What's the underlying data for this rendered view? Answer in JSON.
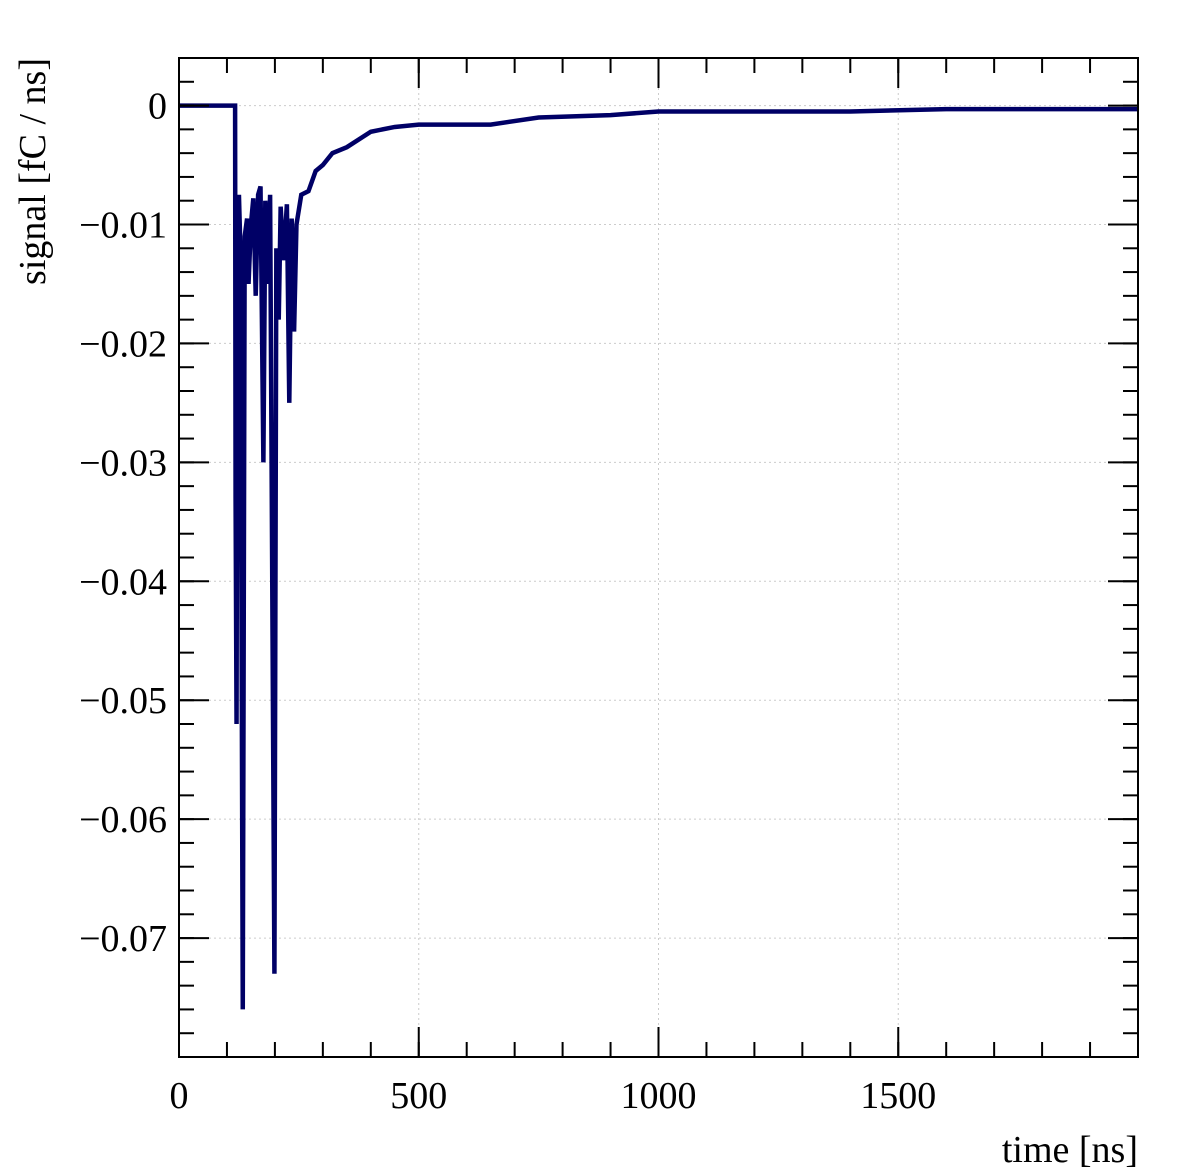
{
  "chart_data": {
    "type": "line",
    "xlabel": "time [ns]",
    "ylabel": "signal [fC / ns]",
    "color": "#000066",
    "grid": true,
    "xlim": [
      0,
      2000
    ],
    "xticks": [
      0,
      500,
      1000,
      1500
    ],
    "ylim": [
      -0.08,
      0.004
    ],
    "yticks": [
      0,
      {
        "value": -0.01,
        "label": "−0.01"
      },
      {
        "value": -0.02,
        "label": "−0.02"
      },
      {
        "value": -0.03,
        "label": "−0.03"
      },
      {
        "value": -0.04,
        "label": "−0.04"
      },
      {
        "value": -0.05,
        "label": "−0.05"
      },
      {
        "value": -0.06,
        "label": "−0.06"
      },
      {
        "value": -0.07,
        "label": "−0.07"
      }
    ],
    "x": [
      0,
      115,
      117,
      118,
      120,
      122,
      125,
      128,
      133,
      137,
      142,
      145,
      150,
      155,
      160,
      165,
      170,
      176,
      180,
      185,
      190,
      199,
      203,
      208,
      212,
      218,
      225,
      230,
      235,
      240,
      245,
      255,
      270,
      285,
      300,
      320,
      350,
      400,
      450,
      500,
      650,
      750,
      900,
      1000,
      1400,
      1600,
      2000
    ],
    "values": [
      0,
      0,
      0,
      -0.033,
      -0.052,
      -0.01,
      -0.0075,
      -0.012,
      -0.076,
      -0.011,
      -0.0095,
      -0.015,
      -0.01,
      -0.0078,
      -0.016,
      -0.0075,
      -0.0068,
      -0.03,
      -0.008,
      -0.015,
      -0.0075,
      -0.073,
      -0.012,
      -0.018,
      -0.0085,
      -0.013,
      -0.0083,
      -0.025,
      -0.0095,
      -0.019,
      -0.01,
      -0.0075,
      -0.0072,
      -0.0055,
      -0.005,
      -0.004,
      -0.0035,
      -0.0022,
      -0.0018,
      -0.0016,
      -0.0016,
      -0.001,
      -0.0008,
      -0.0005,
      -0.0005,
      -0.0003,
      -0.0003
    ]
  }
}
